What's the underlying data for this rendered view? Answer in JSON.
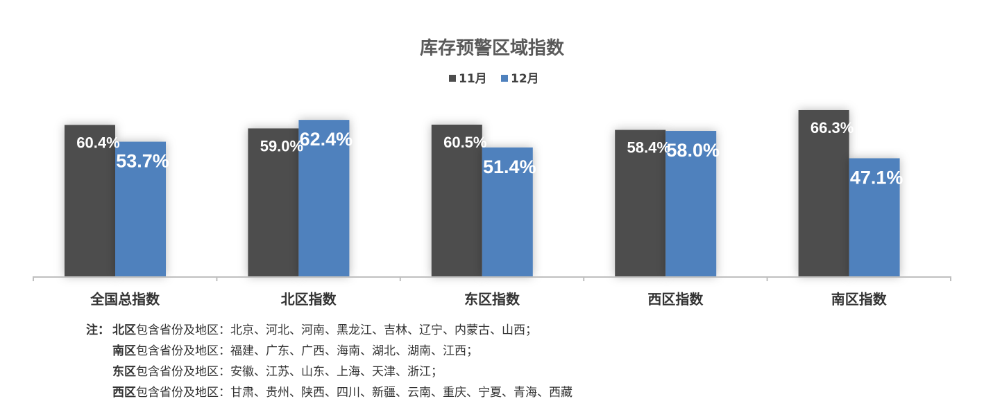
{
  "chart_data": {
    "type": "bar",
    "title": "库存预警区域指数",
    "categories": [
      "全国总指数",
      "北区指数",
      "东区指数",
      "西区指数",
      "南区指数"
    ],
    "series": [
      {
        "name": "11月",
        "color": "#4d4d4d",
        "values": [
          60.4,
          59.0,
          60.5,
          58.4,
          66.3
        ],
        "labels": [
          "60.4%",
          "59.0%",
          "60.5%",
          "58.4%",
          "66.3%"
        ]
      },
      {
        "name": "12月",
        "color": "#4f81bd",
        "values": [
          53.7,
          62.4,
          51.4,
          58.0,
          47.1
        ],
        "labels": [
          "53.7%",
          "62.4%",
          "51.4%",
          "58.0%",
          "47.1%"
        ]
      }
    ],
    "legend_position": "top",
    "grid": false,
    "xlabel": "",
    "ylabel": ""
  },
  "notes": {
    "prefix": "注：",
    "lines": [
      {
        "region": "北区",
        "text": "包含省份及地区：北京、河北、河南、黑龙江、吉林、辽宁、内蒙古、山西；"
      },
      {
        "region": "南区",
        "text": "包含省份及地区：福建、广东、广西、海南、湖北、湖南、江西；"
      },
      {
        "region": "东区",
        "text": "包含省份及地区：安徽、江苏、山东、上海、天津、浙江；"
      },
      {
        "region": "西区",
        "text": "包含省份及地区：甘肃、贵州、陕西、四川、新疆、云南、重庆、宁夏、青海、西藏"
      }
    ]
  }
}
